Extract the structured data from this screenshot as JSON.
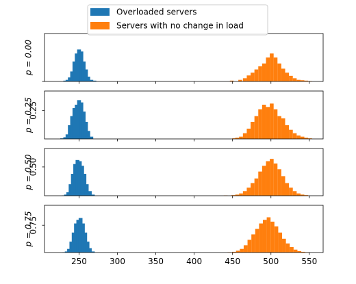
{
  "chart_data": {
    "type": "bar",
    "subtype": "stacked histogram panels",
    "legend": {
      "position": "top-center",
      "entries": [
        {
          "label": "Overloaded servers",
          "color": "#1f77b4"
        },
        {
          "label": "Servers with no change in load",
          "color": "#ff7f0e"
        }
      ]
    },
    "xlim": [
      205,
      568
    ],
    "xticks": [
      250,
      300,
      350,
      400,
      450,
      500,
      550
    ],
    "xtick_labels": [
      "250",
      "300",
      "350",
      "400",
      "450",
      "500",
      "550"
    ],
    "grid": false,
    "bin_width": 5,
    "panels": [
      {
        "ylabel": "p = 0.00",
        "ytick": 0.0,
        "ytick_label": "",
        "ylim": [
          0,
          0.12
        ],
        "series": [
          {
            "color": "#1f77b4",
            "bins": [
              [
                232,
                0.002
              ],
              [
                235,
                0.004
              ],
              [
                238,
                0.01
              ],
              [
                241,
                0.025
              ],
              [
                244,
                0.05
              ],
              [
                247,
                0.07
              ],
              [
                250,
                0.08
              ],
              [
                253,
                0.075
              ],
              [
                256,
                0.05
              ],
              [
                259,
                0.03
              ],
              [
                262,
                0.012
              ],
              [
                266,
                0.004
              ],
              [
                270,
                0.002
              ]
            ]
          },
          {
            "color": "#ff7f0e",
            "bins": [
              [
                449,
                0.002
              ],
              [
                460,
                0.004
              ],
              [
                466,
                0.008
              ],
              [
                471,
                0.015
              ],
              [
                476,
                0.022
              ],
              [
                481,
                0.03
              ],
              [
                486,
                0.038
              ],
              [
                491,
                0.045
              ],
              [
                496,
                0.06
              ],
              [
                501,
                0.07
              ],
              [
                506,
                0.06
              ],
              [
                511,
                0.045
              ],
              [
                516,
                0.032
              ],
              [
                521,
                0.022
              ],
              [
                526,
                0.014
              ],
              [
                531,
                0.008
              ],
              [
                536,
                0.004
              ],
              [
                541,
                0.003
              ],
              [
                546,
                0.002
              ],
              [
                551,
                0.001
              ]
            ]
          }
        ]
      },
      {
        "ylabel": "p = 0.25",
        "ytick": 0.25,
        "ytick_label": "0.25",
        "ylim": [
          0,
          0.42
        ],
        "series": [
          {
            "color": "#1f77b4",
            "bins": [
              [
                228,
                0.005
              ],
              [
                232,
                0.015
              ],
              [
                235,
                0.04
              ],
              [
                238,
                0.12
              ],
              [
                241,
                0.2
              ],
              [
                244,
                0.27
              ],
              [
                247,
                0.3
              ],
              [
                250,
                0.34
              ],
              [
                253,
                0.32
              ],
              [
                256,
                0.24
              ],
              [
                259,
                0.15
              ],
              [
                262,
                0.07
              ],
              [
                266,
                0.02
              ]
            ]
          },
          {
            "color": "#ff7f0e",
            "bins": [
              [
                452,
                0.005
              ],
              [
                456,
                0.01
              ],
              [
                461,
                0.02
              ],
              [
                466,
                0.05
              ],
              [
                471,
                0.09
              ],
              [
                476,
                0.15
              ],
              [
                481,
                0.2
              ],
              [
                486,
                0.26
              ],
              [
                491,
                0.3
              ],
              [
                496,
                0.28
              ],
              [
                501,
                0.31
              ],
              [
                506,
                0.26
              ],
              [
                511,
                0.2
              ],
              [
                516,
                0.18
              ],
              [
                521,
                0.12
              ],
              [
                526,
                0.08
              ],
              [
                531,
                0.05
              ],
              [
                536,
                0.03
              ],
              [
                541,
                0.02
              ],
              [
                546,
                0.01
              ],
              [
                551,
                0.005
              ]
            ]
          }
        ]
      },
      {
        "ylabel": "p = 0.50",
        "ytick": 0.5,
        "ytick_label": "0.50",
        "ylim": [
          0,
          0.82
        ],
        "series": [
          {
            "color": "#1f77b4",
            "bins": [
              [
                230,
                0.005
              ],
              [
                233,
                0.02
              ],
              [
                236,
                0.06
              ],
              [
                239,
                0.2
              ],
              [
                242,
                0.38
              ],
              [
                245,
                0.55
              ],
              [
                248,
                0.62
              ],
              [
                251,
                0.6
              ],
              [
                254,
                0.52
              ],
              [
                257,
                0.38
              ],
              [
                260,
                0.2
              ],
              [
                264,
                0.08
              ],
              [
                268,
                0.02
              ]
            ]
          },
          {
            "color": "#ff7f0e",
            "bins": [
              [
                441,
                0.005
              ],
              [
                451,
                0.01
              ],
              [
                456,
                0.02
              ],
              [
                461,
                0.04
              ],
              [
                466,
                0.08
              ],
              [
                471,
                0.14
              ],
              [
                476,
                0.22
              ],
              [
                481,
                0.3
              ],
              [
                486,
                0.42
              ],
              [
                491,
                0.52
              ],
              [
                496,
                0.6
              ],
              [
                501,
                0.64
              ],
              [
                506,
                0.56
              ],
              [
                511,
                0.46
              ],
              [
                516,
                0.34
              ],
              [
                521,
                0.22
              ],
              [
                526,
                0.14
              ],
              [
                531,
                0.08
              ],
              [
                536,
                0.04
              ],
              [
                541,
                0.02
              ],
              [
                546,
                0.01
              ]
            ]
          }
        ]
      },
      {
        "ylabel": "p = 0.75",
        "ytick": 0.75,
        "ytick_label": "0.75",
        "ylim": [
          0,
          1.3
        ],
        "series": [
          {
            "color": "#1f77b4",
            "bins": [
              [
                231,
                0.01
              ],
              [
                234,
                0.03
              ],
              [
                237,
                0.1
              ],
              [
                240,
                0.3
              ],
              [
                243,
                0.55
              ],
              [
                246,
                0.8
              ],
              [
                249,
                0.9
              ],
              [
                252,
                0.95
              ],
              [
                255,
                0.8
              ],
              [
                258,
                0.55
              ],
              [
                261,
                0.3
              ],
              [
                264,
                0.12
              ],
              [
                268,
                0.03
              ]
            ]
          },
          {
            "color": "#ff7f0e",
            "bins": [
              [
                446,
                0.01
              ],
              [
                452,
                0.02
              ],
              [
                457,
                0.05
              ],
              [
                462,
                0.1
              ],
              [
                467,
                0.2
              ],
              [
                472,
                0.35
              ],
              [
                477,
                0.5
              ],
              [
                482,
                0.65
              ],
              [
                487,
                0.8
              ],
              [
                492,
                0.9
              ],
              [
                497,
                0.97
              ],
              [
                502,
                0.85
              ],
              [
                507,
                0.72
              ],
              [
                512,
                0.55
              ],
              [
                517,
                0.38
              ],
              [
                522,
                0.25
              ],
              [
                527,
                0.15
              ],
              [
                532,
                0.08
              ],
              [
                537,
                0.04
              ],
              [
                542,
                0.02
              ],
              [
                547,
                0.01
              ]
            ]
          }
        ]
      }
    ]
  }
}
